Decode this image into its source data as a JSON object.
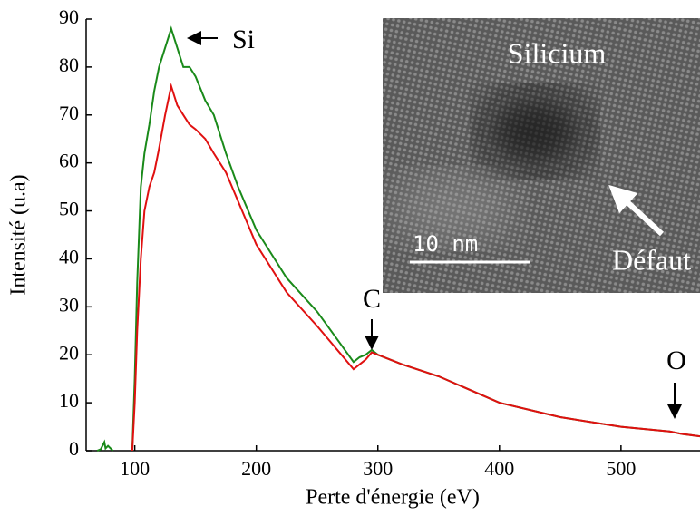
{
  "chart_data": {
    "type": "line",
    "x_label": "Perte d'énergie (eV)",
    "y_label": "Intensité (u.a)",
    "xlim": [
      60,
      565
    ],
    "xticks": [
      100,
      200,
      300,
      400,
      500
    ],
    "ylim": [
      0,
      90
    ],
    "yticks": [
      0,
      10,
      20,
      30,
      40,
      50,
      60,
      70,
      80,
      90
    ],
    "x": [
      69,
      72,
      75,
      76,
      78,
      82,
      85,
      98,
      100,
      102,
      105,
      108,
      112,
      116,
      120,
      125,
      130,
      135,
      140,
      145,
      150,
      158,
      165,
      175,
      185,
      200,
      225,
      250,
      270,
      280,
      285,
      290,
      295,
      300,
      320,
      350,
      400,
      450,
      500,
      540,
      550,
      565
    ],
    "series": [
      {
        "color": "#1a8a1a",
        "values": [
          0,
          0.3,
          1.8,
          0.5,
          1,
          0,
          null,
          0,
          15,
          35,
          55,
          62,
          68,
          75,
          80,
          84,
          88,
          84,
          80,
          80,
          78,
          73,
          70,
          62,
          55,
          46,
          36,
          29,
          22,
          18.5,
          19.5,
          20,
          21,
          20,
          18,
          15.5,
          10,
          7,
          5,
          4,
          3.5,
          3
        ]
      },
      {
        "color": "#e01010",
        "values": [
          null,
          null,
          null,
          null,
          null,
          null,
          null,
          0,
          10,
          25,
          40,
          50,
          55,
          58,
          63,
          70,
          76,
          72,
          70,
          68,
          67,
          65,
          62,
          58,
          52,
          43,
          33,
          26,
          20,
          17,
          18,
          19,
          20.5,
          20,
          18,
          15.5,
          10,
          7,
          5,
          4,
          3.5,
          3
        ]
      }
    ],
    "annotations": [
      "Si",
      "C",
      "O"
    ],
    "inset": {
      "title": "Silicium",
      "scale_bar": "10 nm",
      "label": "Défaut"
    }
  }
}
